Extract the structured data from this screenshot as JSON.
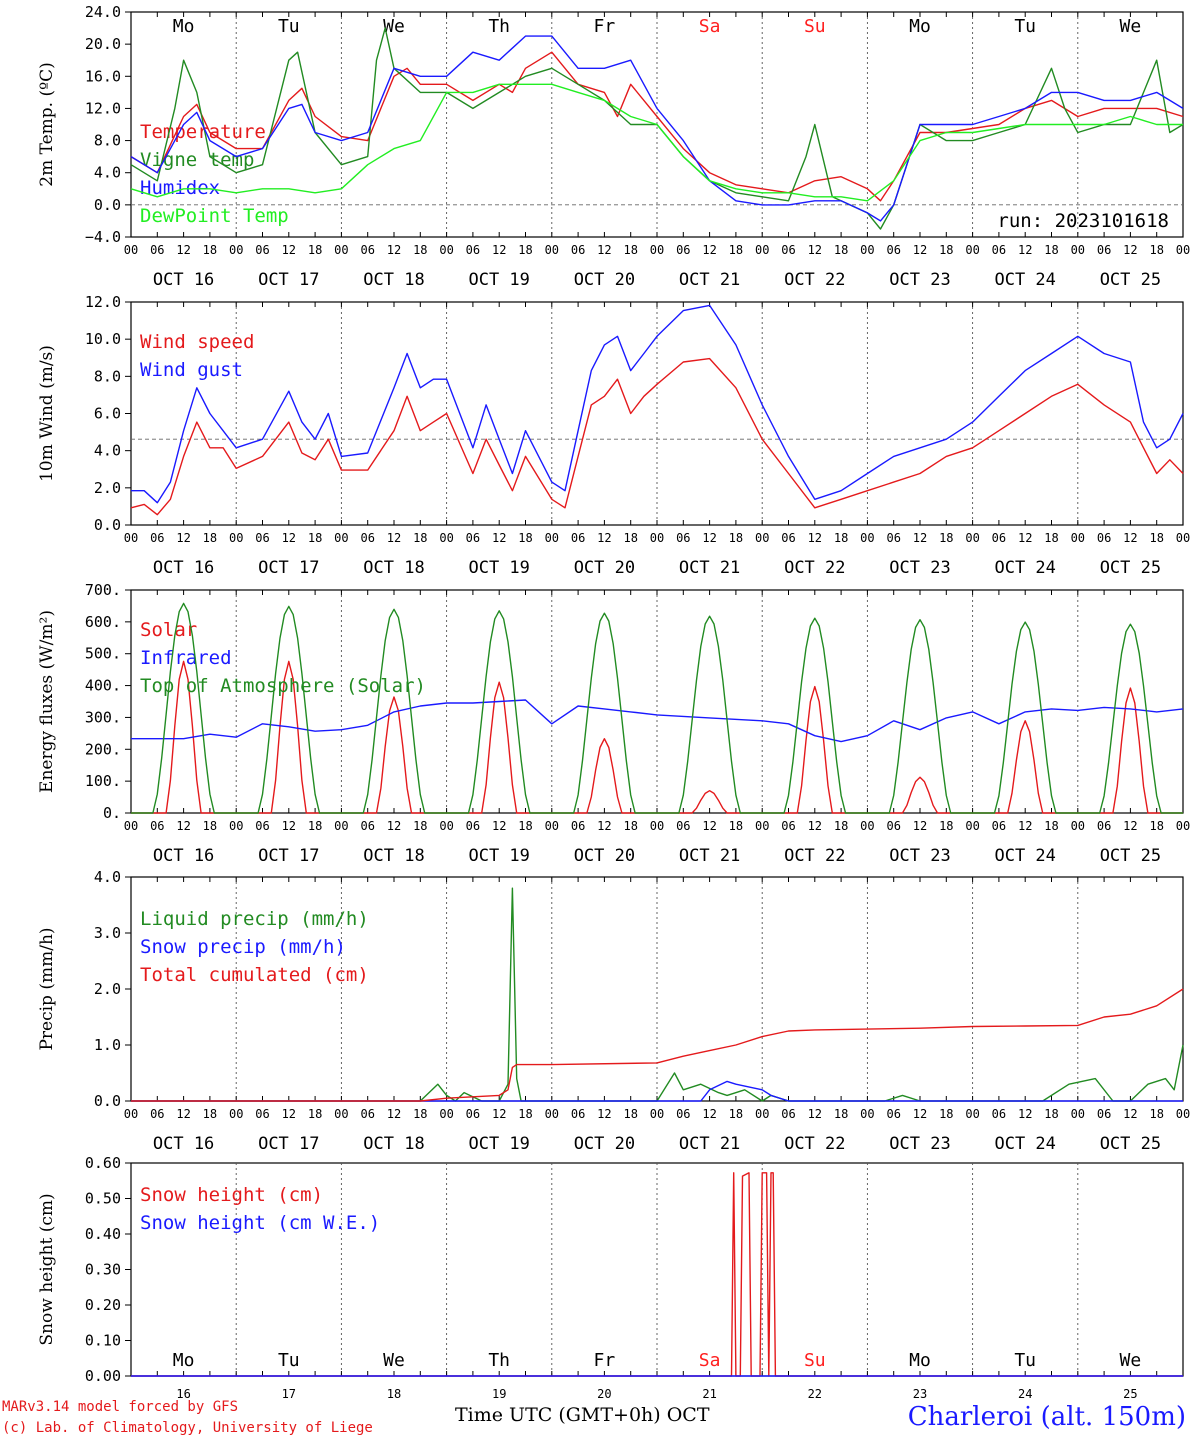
{
  "station": "Charleroi (alt. 150m)",
  "credits": [
    "MARv3.14 model forced by GFS",
    "(c) Lab. of Climatology, University of Liege"
  ],
  "x_axis_title": "Time UTC (GMT+0h) OCT",
  "run_label": "run: 2023101618",
  "hour_ticks": [
    "00",
    "06",
    "12",
    "18"
  ],
  "date_labels": [
    "OCT 16",
    "OCT 17",
    "OCT 18",
    "OCT 19",
    "OCT 20",
    "OCT 21",
    "OCT 22",
    "OCT 23",
    "OCT 24",
    "OCT 25"
  ],
  "bottom_day_numbers": [
    "16",
    "17",
    "18",
    "19",
    "20",
    "21",
    "22",
    "23",
    "24",
    "25"
  ],
  "weekdays": [
    "Mo",
    "Tu",
    "We",
    "Th",
    "Fr",
    "Sa",
    "Su",
    "Mo",
    "Tu",
    "We"
  ],
  "weekend_color": "#ff2020",
  "colors": {
    "red": "#e41a1c",
    "blue": "#1a1aff",
    "green": "#228b22",
    "lightgreen": "#22ee22"
  },
  "chart_data": [
    {
      "type": "line",
      "ylabel": "2m Temp. (ºC)",
      "ylim": [
        -4,
        24
      ],
      "yticks": [
        "24.0",
        "20.0",
        "16.0",
        "12.0",
        "8.0",
        "4.0",
        "0.0",
        "−4.0"
      ],
      "reference_line": 0,
      "x_unit": "hours since Oct 16 00 UTC",
      "series": [
        {
          "name": "Temperature",
          "color": "red",
          "x": [
            0,
            6,
            12,
            15,
            18,
            24,
            30,
            36,
            39,
            42,
            48,
            54,
            60,
            63,
            66,
            72,
            78,
            84,
            87,
            90,
            96,
            102,
            108,
            111,
            114,
            120,
            126,
            132,
            138,
            144,
            150,
            156,
            162,
            168,
            171,
            174,
            180,
            186,
            192,
            198,
            204,
            210,
            216,
            222,
            228,
            234,
            240
          ],
          "y": [
            6,
            4,
            11,
            12.5,
            9,
            7,
            7,
            13,
            14.5,
            11,
            8.5,
            8,
            16,
            17,
            15,
            15,
            13,
            15,
            14,
            17,
            19,
            15,
            14,
            11,
            15,
            11,
            7,
            4,
            2.5,
            2,
            1.5,
            3,
            3.5,
            2,
            0.5,
            3,
            9,
            9,
            9.5,
            10,
            12,
            13,
            11,
            12,
            12,
            12,
            11
          ]
        },
        {
          "name": "Vigne temp",
          "color": "green",
          "x": [
            0,
            6,
            10,
            12,
            15,
            18,
            24,
            30,
            36,
            38,
            42,
            48,
            54,
            56,
            58,
            60,
            66,
            72,
            78,
            84,
            90,
            96,
            102,
            108,
            114,
            120,
            126,
            132,
            138,
            144,
            150,
            154,
            156,
            160,
            168,
            171,
            174,
            180,
            186,
            192,
            198,
            204,
            210,
            213,
            216,
            222,
            228,
            234,
            237,
            240
          ],
          "y": [
            5,
            3,
            12,
            18,
            14,
            6,
            4,
            5,
            18,
            19,
            9,
            5,
            6,
            18,
            22,
            17,
            14,
            14,
            12,
            14,
            16,
            17,
            15,
            13,
            10,
            10,
            6,
            3,
            1.5,
            1,
            0.5,
            6,
            10,
            1,
            -1,
            -3,
            0,
            10,
            8,
            8,
            9,
            10,
            17,
            12,
            9,
            10,
            10,
            18,
            9,
            10
          ]
        },
        {
          "name": "Humidex",
          "color": "blue",
          "x": [
            0,
            6,
            12,
            15,
            18,
            24,
            30,
            36,
            39,
            42,
            48,
            54,
            60,
            66,
            72,
            78,
            84,
            90,
            96,
            102,
            108,
            114,
            120,
            126,
            132,
            138,
            144,
            150,
            156,
            162,
            168,
            171,
            174,
            180,
            186,
            192,
            198,
            204,
            210,
            216,
            222,
            228,
            234,
            240
          ],
          "y": [
            6,
            4,
            10,
            11.5,
            8,
            6,
            7,
            12,
            12.5,
            9,
            8,
            9,
            17,
            16,
            16,
            19,
            18,
            21,
            21,
            17,
            17,
            18,
            12,
            8,
            3,
            0.5,
            0,
            0,
            0.5,
            0.5,
            -1,
            -2,
            0,
            10,
            10,
            10,
            11,
            12,
            14,
            14,
            13,
            13,
            14,
            12
          ]
        },
        {
          "name": "DewPoint Temp",
          "color": "lightgreen",
          "x": [
            0,
            6,
            12,
            18,
            24,
            30,
            36,
            42,
            48,
            54,
            60,
            66,
            72,
            78,
            84,
            90,
            96,
            102,
            108,
            114,
            120,
            126,
            132,
            138,
            144,
            150,
            156,
            162,
            168,
            174,
            180,
            186,
            192,
            198,
            204,
            210,
            216,
            222,
            228,
            234,
            240
          ],
          "y": [
            2,
            1,
            2,
            2,
            1.5,
            2,
            2,
            1.5,
            2,
            5,
            7,
            8,
            14,
            14,
            15,
            15,
            15,
            14,
            13,
            11,
            10,
            6,
            3,
            2,
            1.5,
            1.5,
            1,
            1,
            0.5,
            3,
            8,
            9,
            9,
            9.5,
            10,
            10,
            10,
            10,
            11,
            10,
            10
          ]
        }
      ]
    },
    {
      "type": "line",
      "ylabel": "10m Wind (m/s)",
      "ylim": [
        0,
        13
      ],
      "yticks": [
        "12.0",
        "10.0",
        "8.0",
        "6.0",
        "4.0",
        "2.0",
        "0.0"
      ],
      "reference_line": 5,
      "series": [
        {
          "name": "Wind speed",
          "color": "red",
          "x": [
            0,
            3,
            6,
            9,
            12,
            15,
            18,
            21,
            24,
            30,
            36,
            39,
            42,
            45,
            48,
            54,
            60,
            63,
            66,
            69,
            72,
            78,
            81,
            84,
            87,
            90,
            96,
            99,
            102,
            105,
            108,
            111,
            114,
            117,
            120,
            126,
            132,
            138,
            144,
            150,
            156,
            162,
            168,
            174,
            180,
            186,
            192,
            198,
            204,
            210,
            216,
            222,
            228,
            231,
            234,
            237,
            240
          ],
          "y": [
            1,
            1.2,
            0.6,
            1.5,
            4,
            6,
            4.5,
            4.5,
            3.3,
            4,
            6,
            4.2,
            3.8,
            5,
            3.2,
            3.2,
            5.5,
            7.5,
            5.5,
            6,
            6.5,
            3,
            5,
            3.5,
            2,
            4,
            1.5,
            1,
            4,
            7,
            7.5,
            8.5,
            6.5,
            7.5,
            8.2,
            9.5,
            9.7,
            8,
            5,
            3,
            1,
            1.5,
            2,
            2.5,
            3,
            4,
            4.5,
            5.5,
            6.5,
            7.5,
            8.2,
            7,
            6,
            4.5,
            3,
            3.8,
            3
          ]
        },
        {
          "name": "Wind gust",
          "color": "blue",
          "x": [
            0,
            3,
            6,
            9,
            12,
            15,
            18,
            21,
            24,
            30,
            36,
            39,
            42,
            45,
            48,
            54,
            60,
            63,
            66,
            69,
            72,
            78,
            81,
            84,
            87,
            90,
            96,
            99,
            102,
            105,
            108,
            111,
            114,
            117,
            120,
            126,
            132,
            138,
            144,
            150,
            156,
            162,
            168,
            174,
            180,
            186,
            192,
            198,
            204,
            210,
            216,
            222,
            228,
            231,
            234,
            237,
            240
          ],
          "y": [
            2,
            2,
            1.3,
            2.5,
            5.5,
            8,
            6.5,
            5.5,
            4.5,
            5,
            7.8,
            6,
            5,
            6.5,
            4,
            4.2,
            8,
            10,
            8,
            8.5,
            8.5,
            4.5,
            7,
            5,
            3,
            5.5,
            2.5,
            2,
            5.5,
            9,
            10.5,
            11,
            9,
            10,
            11,
            12.5,
            12.8,
            10.5,
            7,
            4,
            1.5,
            2,
            3,
            4,
            4.5,
            5,
            6,
            7.5,
            9,
            10,
            11,
            10,
            9.5,
            6,
            4.5,
            5,
            6.5
          ]
        }
      ]
    },
    {
      "type": "line",
      "ylabel": "Energy fluxes (W/m²)",
      "ylim": [
        0,
        750
      ],
      "yticks": [
        "700.",
        "600.",
        "500.",
        "400.",
        "300.",
        "200.",
        "100.",
        "0."
      ],
      "series": [
        {
          "name": "Solar",
          "color": "red",
          "peaks": [
            [
              12,
              510
            ],
            [
              36,
              510
            ],
            [
              60,
              390
            ],
            [
              84,
              440
            ],
            [
              108,
              250
            ],
            [
              132,
              75
            ],
            [
              156,
              425
            ],
            [
              180,
              120
            ],
            [
              204,
              310
            ],
            [
              228,
              420
            ]
          ]
        },
        {
          "name": "Infrared",
          "color": "blue",
          "x": [
            0,
            12,
            18,
            24,
            30,
            36,
            42,
            48,
            54,
            60,
            66,
            72,
            78,
            84,
            90,
            96,
            102,
            108,
            114,
            120,
            132,
            144,
            150,
            156,
            162,
            168,
            174,
            180,
            186,
            192,
            198,
            204,
            210,
            216,
            222,
            228,
            234,
            240
          ],
          "y": [
            250,
            250,
            265,
            255,
            300,
            290,
            275,
            280,
            295,
            340,
            360,
            370,
            370,
            375,
            380,
            300,
            360,
            350,
            340,
            330,
            320,
            310,
            300,
            260,
            240,
            260,
            310,
            280,
            320,
            340,
            300,
            340,
            350,
            345,
            355,
            350,
            340,
            350
          ]
        },
        {
          "name": "Top of Atmosphere (Solar)",
          "color": "green",
          "peaks": [
            [
              12,
              705
            ],
            [
              36,
              695
            ],
            [
              60,
              685
            ],
            [
              84,
              680
            ],
            [
              108,
              672
            ],
            [
              132,
              662
            ],
            [
              156,
              655
            ],
            [
              180,
              650
            ],
            [
              204,
              642
            ],
            [
              228,
              635
            ]
          ]
        }
      ]
    },
    {
      "type": "line",
      "ylabel": "Precip (mm/h)",
      "ylim": [
        0,
        4
      ],
      "yticks": [
        "4.0",
        "3.0",
        "2.0",
        "1.0",
        "0.0"
      ],
      "series": [
        {
          "name": "Liquid precip (mm/h)",
          "color": "green",
          "x": [
            0,
            66,
            70,
            72,
            74,
            76,
            80,
            84,
            86,
            87,
            88,
            89,
            90,
            96,
            120,
            124,
            126,
            130,
            134,
            136,
            140,
            144,
            146,
            150,
            172,
            176,
            180,
            208,
            214,
            220,
            224,
            228,
            232,
            236,
            238,
            240
          ],
          "y": [
            0,
            0,
            0.3,
            0.1,
            0,
            0.15,
            0,
            0,
            0.3,
            3.8,
            0.4,
            0,
            0,
            0,
            0,
            0.5,
            0.2,
            0.3,
            0.15,
            0.1,
            0.2,
            0,
            0.1,
            0,
            0,
            0.1,
            0,
            0,
            0.3,
            0.4,
            0,
            0,
            0.3,
            0.4,
            0.2,
            1
          ]
        },
        {
          "name": "Snow precip (mm/h)",
          "color": "blue",
          "x": [
            0,
            130,
            132,
            136,
            138,
            144,
            146,
            150,
            240
          ],
          "y": [
            0,
            0,
            0.2,
            0.35,
            0.3,
            0.2,
            0.1,
            0,
            0
          ]
        },
        {
          "name": "Total cumulated (cm)",
          "color": "red",
          "x": [
            0,
            66,
            72,
            84,
            86,
            87,
            88,
            90,
            96,
            120,
            126,
            132,
            138,
            144,
            150,
            156,
            180,
            192,
            204,
            216,
            222,
            228,
            234,
            240
          ],
          "y": [
            0,
            0,
            0.05,
            0.1,
            0.2,
            0.6,
            0.65,
            0.65,
            0.65,
            0.68,
            0.8,
            0.9,
            1,
            1.15,
            1.25,
            1.27,
            1.3,
            1.33,
            1.34,
            1.35,
            1.5,
            1.55,
            1.7,
            2
          ]
        }
      ]
    },
    {
      "type": "line",
      "ylabel": "Snow height (cm)",
      "ylim": [
        0,
        0.65
      ],
      "yticks": [
        "0.60",
        "0.50",
        "0.40",
        "0.30",
        "0.20",
        "0.10",
        "0.00"
      ],
      "series": [
        {
          "name": "Snow height (cm)",
          "color": "red",
          "x": [
            0,
            137,
            137.5,
            138,
            139,
            139.5,
            141,
            141.5,
            142,
            143,
            143.5,
            144,
            145,
            145.5,
            146,
            146.5,
            147,
            240
          ],
          "y": [
            0,
            0,
            0.62,
            0,
            0,
            0.61,
            0.62,
            0,
            0,
            0,
            0,
            0.62,
            0.62,
            0,
            0.62,
            0.62,
            0,
            0
          ]
        },
        {
          "name": "Snow height (cm W.E.)",
          "color": "blue",
          "x": [
            0,
            240
          ],
          "y": [
            0,
            0
          ]
        }
      ]
    }
  ]
}
